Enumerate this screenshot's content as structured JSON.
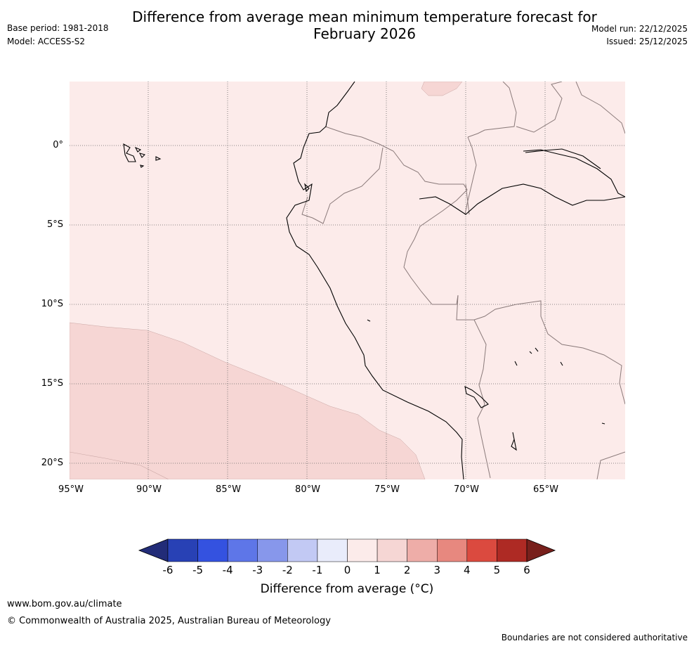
{
  "title_line1": "Difference from average mean minimum temperature forecast for",
  "title_line2": "February 2026",
  "base_period": "Base period: 1981-2018",
  "model": "Model: ACCESS-S2",
  "model_run": "Model run: 22/12/2025",
  "issued": "Issued: 25/12/2025",
  "latitude_labels": [
    "0°",
    "5°S",
    "10°S",
    "15°S",
    "20°S"
  ],
  "longitude_labels": [
    "95°W",
    "90°W",
    "85°W",
    "80°W",
    "75°W",
    "70°W",
    "65°W"
  ],
  "map_regions": [
    {
      "name": "background",
      "anomaly_range": "0 to 1",
      "color": "#fcebea"
    },
    {
      "name": "south-west-ocean",
      "anomaly_range": "1 to 2",
      "color": "#f6d6d4"
    },
    {
      "name": "north-patch",
      "anomaly_range": "1 to 2",
      "color": "#f6d6d4"
    }
  ],
  "colorbar": {
    "colors": [
      "#222c78",
      "#2841b5",
      "#3452e0",
      "#5e76e8",
      "#8797eb",
      "#c2c9f4",
      "#e9ecfb",
      "#fcebea",
      "#f6d6d4",
      "#eeada8",
      "#e7887f",
      "#db4a3f",
      "#ae2a24",
      "#78201c"
    ],
    "ticks": [
      "-6",
      "-5",
      "-4",
      "-3",
      "-2",
      "-1",
      "0",
      "1",
      "2",
      "3",
      "4",
      "5",
      "6"
    ],
    "label": "Difference from average (°C)"
  },
  "colors": {
    "coastline": "#000000",
    "border": "#8a7a7a",
    "grid": "#666666"
  },
  "website": "www.bom.gov.au/climate",
  "copyright": "© Commonwealth of Australia 2025, Australian Bureau of Meteorology",
  "boundary_note": "Boundaries are not considered authoritative"
}
